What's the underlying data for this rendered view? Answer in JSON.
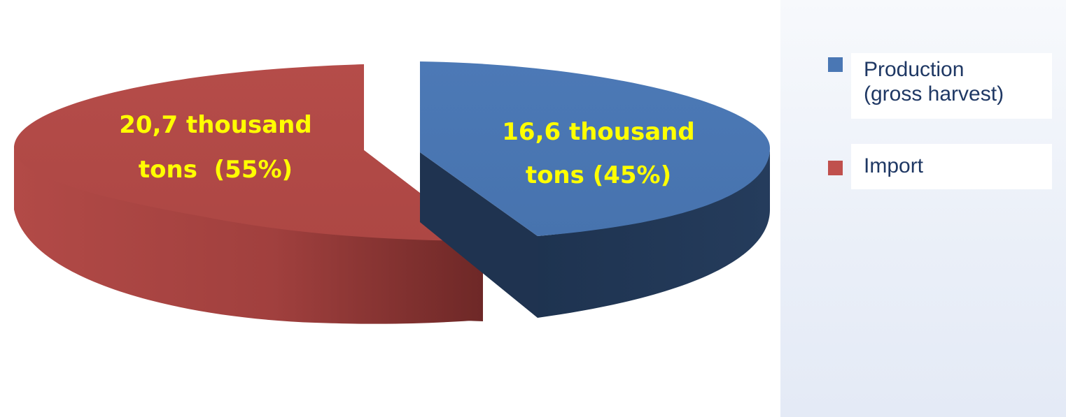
{
  "chart_data": {
    "type": "pie",
    "style": "3d-exploded",
    "categories": [
      "Production\n(gross harvest)",
      "Import"
    ],
    "values": [
      16.6,
      20.7
    ],
    "percentages": [
      45,
      55
    ],
    "colors": {
      "production_top": "#4a77b4",
      "production_side": "#1f3350",
      "import_top": "#b24a47",
      "import_side": "#7a2a29"
    },
    "data_labels": [
      {
        "line1": "16,6 thousand",
        "line2": "tons (45%)"
      },
      {
        "line1": "20,7 thousand",
        "line2": "tons  (55%)"
      }
    ],
    "label_color": "#ffff00",
    "legend": {
      "position": "right",
      "items": [
        {
          "label": "Production\n(gross harvest)",
          "color": "#4a77b4"
        },
        {
          "label": "Import",
          "color": "#c0504d"
        }
      ]
    }
  }
}
